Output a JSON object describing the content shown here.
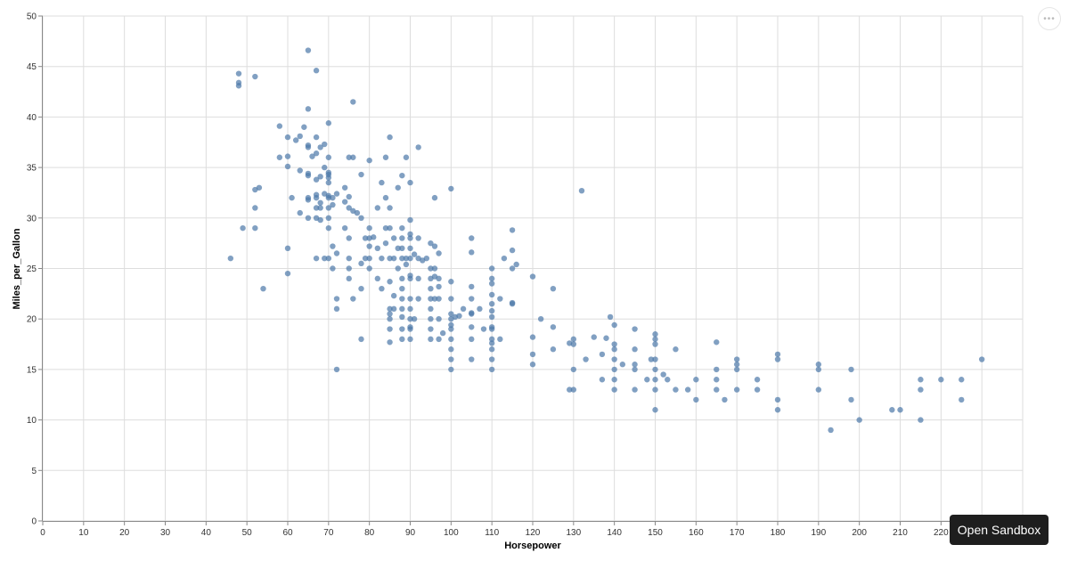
{
  "chart_data": {
    "type": "scatter",
    "title": "",
    "xlabel": "Horsepower",
    "ylabel": "Miles_per_Gallon",
    "xlim": [
      0,
      240
    ],
    "ylim": [
      0,
      50
    ],
    "x_ticks": [
      0,
      10,
      20,
      30,
      40,
      50,
      60,
      70,
      80,
      90,
      100,
      110,
      120,
      130,
      140,
      150,
      160,
      170,
      180,
      190,
      200,
      210,
      220
    ],
    "y_ticks": [
      0,
      5,
      10,
      15,
      20,
      25,
      30,
      35,
      40,
      45,
      50
    ],
    "grid": true,
    "legend": null,
    "point_color": "#4c78a8",
    "points": [
      [
        46,
        26
      ],
      [
        48,
        43.1
      ],
      [
        48,
        43.4
      ],
      [
        48,
        44.3
      ],
      [
        49,
        29
      ],
      [
        52,
        44
      ],
      [
        52,
        29
      ],
      [
        52,
        31
      ],
      [
        52,
        32.8
      ],
      [
        53,
        33
      ],
      [
        54,
        23
      ],
      [
        58,
        39.1
      ],
      [
        58,
        36
      ],
      [
        60,
        38
      ],
      [
        60,
        36.1
      ],
      [
        60,
        35.1
      ],
      [
        60,
        27
      ],
      [
        60,
        24.5
      ],
      [
        61,
        32
      ],
      [
        62,
        37.7
      ],
      [
        63,
        38.1
      ],
      [
        63,
        30.5
      ],
      [
        63,
        34.7
      ],
      [
        64,
        39
      ],
      [
        65,
        46.6
      ],
      [
        65,
        40.8
      ],
      [
        65,
        37.2
      ],
      [
        65,
        37
      ],
      [
        65,
        34.4
      ],
      [
        65,
        34.2
      ],
      [
        65,
        32
      ],
      [
        65,
        31.8
      ],
      [
        65,
        30
      ],
      [
        66,
        36.1
      ],
      [
        67,
        44.6
      ],
      [
        67,
        38
      ],
      [
        67,
        36.4
      ],
      [
        67,
        33.8
      ],
      [
        67,
        32.3
      ],
      [
        67,
        32
      ],
      [
        67,
        31
      ],
      [
        67,
        30
      ],
      [
        67,
        26
      ],
      [
        68,
        37
      ],
      [
        68,
        34.1
      ],
      [
        68,
        31
      ],
      [
        68,
        31.5
      ],
      [
        68,
        29.8
      ],
      [
        69,
        37.3
      ],
      [
        69,
        35
      ],
      [
        69,
        32.4
      ],
      [
        69,
        26
      ],
      [
        70,
        39.4
      ],
      [
        70,
        36
      ],
      [
        70,
        34.5
      ],
      [
        70,
        34.3
      ],
      [
        70,
        34
      ],
      [
        70,
        33.5
      ],
      [
        70,
        32.2
      ],
      [
        70,
        32
      ],
      [
        70,
        31
      ],
      [
        70,
        30
      ],
      [
        70,
        29
      ],
      [
        70,
        26
      ],
      [
        71,
        32
      ],
      [
        71,
        31.3
      ],
      [
        71,
        27.2
      ],
      [
        71,
        25
      ],
      [
        72,
        22
      ],
      [
        72,
        21
      ],
      [
        72,
        15
      ],
      [
        72,
        26.5
      ],
      [
        72,
        32.4
      ],
      [
        74,
        33
      ],
      [
        74,
        31.6
      ],
      [
        74,
        29
      ],
      [
        75,
        36
      ],
      [
        75,
        31
      ],
      [
        75,
        32.1
      ],
      [
        75,
        28
      ],
      [
        75,
        26
      ],
      [
        75,
        25
      ],
      [
        75,
        24
      ],
      [
        76,
        36
      ],
      [
        76,
        41.5
      ],
      [
        76,
        30.7
      ],
      [
        76,
        22
      ],
      [
        77,
        30.5
      ],
      [
        78,
        34.3
      ],
      [
        78,
        30
      ],
      [
        78,
        25.5
      ],
      [
        78,
        23
      ],
      [
        78,
        18
      ],
      [
        79,
        26
      ],
      [
        79,
        28
      ],
      [
        80,
        35.7
      ],
      [
        80,
        29
      ],
      [
        80,
        28
      ],
      [
        80,
        27.2
      ],
      [
        80,
        26
      ],
      [
        80,
        25
      ],
      [
        81,
        28.1
      ],
      [
        82,
        24
      ],
      [
        82,
        27
      ],
      [
        82,
        31
      ],
      [
        83,
        33.5
      ],
      [
        83,
        26
      ],
      [
        83,
        23
      ],
      [
        84,
        32
      ],
      [
        84,
        29
      ],
      [
        84,
        27.5
      ],
      [
        84,
        36
      ],
      [
        85,
        38
      ],
      [
        85,
        31
      ],
      [
        85,
        29
      ],
      [
        85,
        26
      ],
      [
        85,
        23.7
      ],
      [
        85,
        21
      ],
      [
        85,
        20.5
      ],
      [
        85,
        20
      ],
      [
        85,
        19
      ],
      [
        85,
        17.7
      ],
      [
        86,
        28
      ],
      [
        86,
        26
      ],
      [
        86,
        21
      ],
      [
        86,
        22.3
      ],
      [
        87,
        33
      ],
      [
        87,
        27
      ],
      [
        87,
        25
      ],
      [
        88,
        34.2
      ],
      [
        88,
        29
      ],
      [
        88,
        28
      ],
      [
        88,
        27
      ],
      [
        88,
        26
      ],
      [
        88,
        24
      ],
      [
        88,
        23
      ],
      [
        88,
        22
      ],
      [
        88,
        20.2
      ],
      [
        88,
        19
      ],
      [
        88,
        18
      ],
      [
        88,
        21
      ],
      [
        89,
        36
      ],
      [
        89,
        26
      ],
      [
        89,
        25.4
      ],
      [
        90,
        33.5
      ],
      [
        90,
        29.8
      ],
      [
        90,
        28.4
      ],
      [
        90,
        28
      ],
      [
        90,
        27
      ],
      [
        90,
        26
      ],
      [
        90,
        24.3
      ],
      [
        90,
        24
      ],
      [
        90,
        22
      ],
      [
        90,
        21
      ],
      [
        90,
        20
      ],
      [
        90,
        19.2
      ],
      [
        90,
        19
      ],
      [
        90,
        18
      ],
      [
        91,
        26.4
      ],
      [
        91,
        20
      ],
      [
        92,
        37
      ],
      [
        92,
        28
      ],
      [
        92,
        26
      ],
      [
        92,
        24
      ],
      [
        92,
        22
      ],
      [
        93,
        25.8
      ],
      [
        94,
        26
      ],
      [
        95,
        27.5
      ],
      [
        95,
        25
      ],
      [
        95,
        24
      ],
      [
        95,
        23
      ],
      [
        95,
        22
      ],
      [
        95,
        21
      ],
      [
        95,
        20
      ],
      [
        95,
        19
      ],
      [
        95,
        18
      ],
      [
        96,
        32
      ],
      [
        96,
        25
      ],
      [
        96,
        24.2
      ],
      [
        96,
        22
      ],
      [
        96,
        27.2
      ],
      [
        97,
        26.5
      ],
      [
        97,
        24
      ],
      [
        97,
        23.2
      ],
      [
        97,
        22
      ],
      [
        97,
        20
      ],
      [
        97,
        18
      ],
      [
        98,
        18.6
      ],
      [
        100,
        32.9
      ],
      [
        100,
        23.7
      ],
      [
        100,
        22
      ],
      [
        100,
        20.5
      ],
      [
        100,
        19.4
      ],
      [
        100,
        19
      ],
      [
        100,
        18
      ],
      [
        100,
        17
      ],
      [
        100,
        16
      ],
      [
        100,
        15
      ],
      [
        100,
        20
      ],
      [
        101,
        20.2
      ],
      [
        102,
        20.3
      ],
      [
        103,
        21
      ],
      [
        105,
        28
      ],
      [
        105,
        26.6
      ],
      [
        105,
        23.2
      ],
      [
        105,
        22
      ],
      [
        105,
        20.6
      ],
      [
        105,
        20.5
      ],
      [
        105,
        19.2
      ],
      [
        105,
        18
      ],
      [
        105,
        16
      ],
      [
        107,
        21
      ],
      [
        108,
        19
      ],
      [
        110,
        25
      ],
      [
        110,
        24
      ],
      [
        110,
        23.5
      ],
      [
        110,
        22.4
      ],
      [
        110,
        21.5
      ],
      [
        110,
        20.8
      ],
      [
        110,
        20.2
      ],
      [
        110,
        19.2
      ],
      [
        110,
        19
      ],
      [
        110,
        18
      ],
      [
        110,
        17.6
      ],
      [
        110,
        17
      ],
      [
        110,
        16
      ],
      [
        110,
        15
      ],
      [
        112,
        18
      ],
      [
        112,
        22
      ],
      [
        113,
        26
      ],
      [
        115,
        28.8
      ],
      [
        115,
        26.8
      ],
      [
        115,
        25
      ],
      [
        115,
        21.6
      ],
      [
        115,
        21.5
      ],
      [
        116,
        25.4
      ],
      [
        120,
        24.2
      ],
      [
        120,
        18.2
      ],
      [
        120,
        16.5
      ],
      [
        120,
        15.5
      ],
      [
        122,
        20
      ],
      [
        125,
        23
      ],
      [
        125,
        19.2
      ],
      [
        125,
        17
      ],
      [
        129,
        17.6
      ],
      [
        129,
        13
      ],
      [
        130,
        18
      ],
      [
        130,
        17.5
      ],
      [
        130,
        15
      ],
      [
        130,
        13
      ],
      [
        132,
        32.7
      ],
      [
        133,
        16
      ],
      [
        135,
        18.2
      ],
      [
        137,
        16.5
      ],
      [
        137,
        14
      ],
      [
        138,
        18.1
      ],
      [
        139,
        20.2
      ],
      [
        140,
        19.4
      ],
      [
        140,
        17.5
      ],
      [
        140,
        17
      ],
      [
        140,
        16
      ],
      [
        140,
        15
      ],
      [
        140,
        14
      ],
      [
        140,
        13
      ],
      [
        142,
        15.5
      ],
      [
        145,
        19
      ],
      [
        145,
        17
      ],
      [
        145,
        15.5
      ],
      [
        145,
        15
      ],
      [
        145,
        13
      ],
      [
        148,
        14
      ],
      [
        149,
        16
      ],
      [
        150,
        18.5
      ],
      [
        150,
        18
      ],
      [
        150,
        17.5
      ],
      [
        150,
        16
      ],
      [
        150,
        15
      ],
      [
        150,
        14
      ],
      [
        150,
        13
      ],
      [
        150,
        11
      ],
      [
        152,
        14.5
      ],
      [
        153,
        14
      ],
      [
        155,
        17
      ],
      [
        155,
        13
      ],
      [
        158,
        13
      ],
      [
        160,
        14
      ],
      [
        160,
        12
      ],
      [
        165,
        17.7
      ],
      [
        165,
        15
      ],
      [
        165,
        14
      ],
      [
        165,
        13
      ],
      [
        167,
        12
      ],
      [
        170,
        16
      ],
      [
        170,
        15.5
      ],
      [
        170,
        15
      ],
      [
        170,
        13
      ],
      [
        175,
        14
      ],
      [
        175,
        13
      ],
      [
        180,
        16.5
      ],
      [
        180,
        16
      ],
      [
        180,
        12
      ],
      [
        180,
        11
      ],
      [
        190,
        15.5
      ],
      [
        190,
        15
      ],
      [
        190,
        13
      ],
      [
        193,
        9
      ],
      [
        198,
        15
      ],
      [
        198,
        12
      ],
      [
        200,
        10
      ],
      [
        208,
        11
      ],
      [
        210,
        11
      ],
      [
        215,
        14
      ],
      [
        215,
        13
      ],
      [
        215,
        10
      ],
      [
        220,
        14
      ],
      [
        225,
        14
      ],
      [
        225,
        12
      ],
      [
        230,
        16
      ]
    ]
  },
  "ui": {
    "actions_label": "•••",
    "sandbox_label": "Open Sandbox"
  }
}
